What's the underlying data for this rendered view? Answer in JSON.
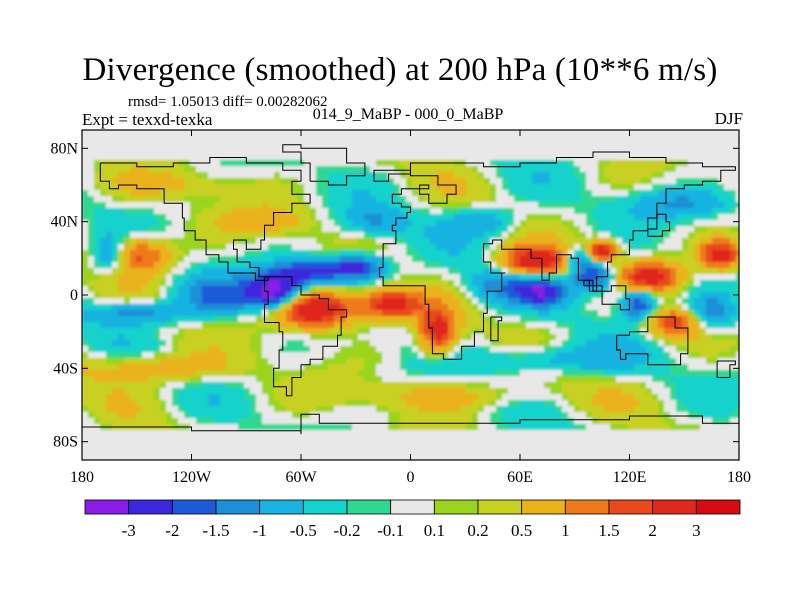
{
  "chart_data": {
    "type": "heatmap",
    "title": "Divergence (smoothed) at 200 hPa (10**6 m/s)",
    "stats_text": "rmsd= 1.05013 diff= 0.00282062",
    "left_label": "Expt = texxd-texka",
    "center_label": "014_9_MaBP - 000_0_MaBP",
    "right_label": "DJF",
    "x_ticks": [
      "180",
      "120W",
      "60W",
      "0",
      "60E",
      "120E",
      "180"
    ],
    "y_ticks": [
      "80N",
      "40N",
      "0",
      "40S",
      "80S"
    ],
    "x_range": [
      -180,
      180
    ],
    "y_range": [
      -90,
      90
    ],
    "colorbar": {
      "levels": [
        "-3",
        "-2",
        "-1.5",
        "-1",
        "-0.5",
        "-0.2",
        "-0.1",
        "0.1",
        "0.2",
        "0.5",
        "1",
        "1.5",
        "2",
        "3"
      ],
      "colors": [
        "#8a1ce6",
        "#3c28dc",
        "#1e5ad8",
        "#1e8fd6",
        "#18b3e0",
        "#14d2cc",
        "#2ed890",
        "#e8e8e8",
        "#9ad41e",
        "#c8d020",
        "#eab21a",
        "#ee7a1c",
        "#e84a1c",
        "#e0281c",
        "#d40a14"
      ]
    },
    "features": [
      {
        "lon": -75,
        "lat": 2,
        "value": -3.4,
        "rx": 14,
        "ry": 9
      },
      {
        "lon": -58,
        "lat": 12,
        "value": -2.2,
        "rx": 18,
        "ry": 7
      },
      {
        "lon": -105,
        "lat": 0,
        "value": -1.6,
        "rx": 22,
        "ry": 10
      },
      {
        "lon": -30,
        "lat": 15,
        "value": -2.4,
        "rx": 16,
        "ry": 7
      },
      {
        "lon": -52,
        "lat": -8,
        "value": 3.0,
        "rx": 22,
        "ry": 10
      },
      {
        "lon": -10,
        "lat": -5,
        "value": 2.5,
        "rx": 16,
        "ry": 8
      },
      {
        "lon": 15,
        "lat": -20,
        "value": 2.4,
        "rx": 10,
        "ry": 12
      },
      {
        "lon": 50,
        "lat": 5,
        "value": -1.2,
        "rx": 18,
        "ry": 10
      },
      {
        "lon": 68,
        "lat": 18,
        "value": 2.8,
        "rx": 18,
        "ry": 8
      },
      {
        "lon": 72,
        "lat": 2,
        "value": -2.4,
        "rx": 12,
        "ry": 7
      },
      {
        "lon": 92,
        "lat": 20,
        "value": -1.4,
        "rx": 8,
        "ry": 6
      },
      {
        "lon": 105,
        "lat": 24,
        "value": 2.6,
        "rx": 8,
        "ry": 6
      },
      {
        "lon": 100,
        "lat": 10,
        "value": -2.2,
        "rx": 12,
        "ry": 8
      },
      {
        "lon": 132,
        "lat": 10,
        "value": 2.4,
        "rx": 16,
        "ry": 8
      },
      {
        "lon": 170,
        "lat": 22,
        "value": 2.6,
        "rx": 12,
        "ry": 8
      },
      {
        "lon": 125,
        "lat": -5,
        "value": -2.2,
        "rx": 10,
        "ry": 8
      },
      {
        "lon": 145,
        "lat": -15,
        "value": 1.8,
        "rx": 16,
        "ry": 8
      },
      {
        "lon": 165,
        "lat": -10,
        "value": -1.5,
        "rx": 14,
        "ry": 10
      },
      {
        "lon": -150,
        "lat": 22,
        "value": 1.8,
        "rx": 18,
        "ry": 10
      },
      {
        "lon": -165,
        "lat": 22,
        "value": -1.5,
        "rx": 10,
        "ry": 10
      },
      {
        "lon": -150,
        "lat": -10,
        "value": -1.3,
        "rx": 28,
        "ry": 6
      },
      {
        "lon": -20,
        "lat": 40,
        "value": -1.0,
        "rx": 18,
        "ry": 8
      },
      {
        "lon": 40,
        "lat": 40,
        "value": -1.0,
        "rx": 20,
        "ry": 8
      },
      {
        "lon": -140,
        "lat": -40,
        "value": 1.0,
        "rx": 40,
        "ry": 8
      },
      {
        "lon": 80,
        "lat": -35,
        "value": -1.0,
        "rx": 40,
        "ry": 8
      },
      {
        "lon": 150,
        "lat": 50,
        "value": -1.0,
        "rx": 30,
        "ry": 8
      },
      {
        "lon": -80,
        "lat": 40,
        "value": 0.8,
        "rx": 25,
        "ry": 8
      },
      {
        "lon": -130,
        "lat": 60,
        "value": 0.5,
        "rx": 40,
        "ry": 8
      },
      {
        "lon": 20,
        "lat": -55,
        "value": 0.6,
        "rx": 60,
        "ry": 8
      }
    ]
  }
}
